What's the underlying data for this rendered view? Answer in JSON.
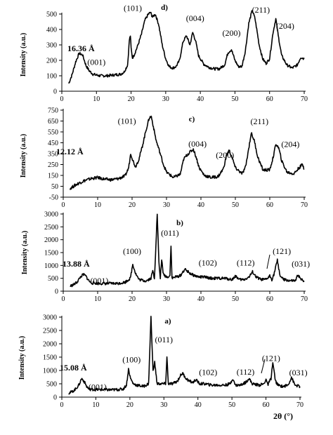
{
  "chart_data": [
    {
      "type": "line",
      "panel": "d)",
      "ylabel": "Intensity (a.u.)",
      "xlim": [
        0,
        70
      ],
      "ylim": [
        0,
        500
      ],
      "xticks": [
        0,
        10,
        20,
        30,
        40,
        50,
        60,
        70
      ],
      "yticks": [
        0,
        100,
        200,
        300,
        400,
        500
      ],
      "d_spacing": "16.36 Å",
      "annotations": [
        {
          "text": "(001)",
          "x": 10,
          "y": 170
        },
        {
          "text": "(101)",
          "x": 20.5,
          "y": 520
        },
        {
          "text": "(004)",
          "x": 38.5,
          "y": 455
        },
        {
          "text": "(200)",
          "x": 49,
          "y": 360
        },
        {
          "text": "(211)",
          "x": 57.5,
          "y": 510
        },
        {
          "text": "(204)",
          "x": 64.5,
          "y": 405
        }
      ],
      "series": [
        {
          "x": [
            2,
            3,
            4,
            5,
            6,
            7,
            8,
            9,
            11,
            13,
            15,
            17,
            18,
            19,
            19.5,
            19.8,
            20,
            20.4,
            21,
            22,
            23,
            24,
            25,
            25.6,
            26.2,
            27,
            28,
            29,
            30,
            31,
            32,
            33,
            34,
            35,
            36,
            37,
            37.8,
            38.6,
            39.5,
            41,
            42.5,
            44,
            45.5,
            47,
            48,
            49,
            50,
            51,
            52,
            53,
            54,
            55,
            55.8,
            57,
            58,
            59,
            60,
            61,
            61.8,
            62.5,
            63.5,
            65,
            66.5,
            68,
            69,
            70
          ],
          "y": [
            50,
            110,
            190,
            245,
            235,
            165,
            130,
            110,
            100,
            100,
            105,
            110,
            125,
            170,
            330,
            360,
            280,
            215,
            240,
            300,
            370,
            460,
            500,
            510,
            480,
            500,
            430,
            300,
            210,
            160,
            150,
            160,
            200,
            320,
            360,
            300,
            380,
            330,
            230,
            175,
            155,
            145,
            145,
            170,
            250,
            270,
            200,
            160,
            160,
            260,
            440,
            525,
            470,
            300,
            210,
            180,
            210,
            380,
            470,
            360,
            230,
            170,
            150,
            170,
            220,
            210
          ]
        }
      ]
    },
    {
      "type": "line",
      "panel": "c)",
      "ylabel": "Intensity (a.u.)",
      "xlim": [
        0,
        70
      ],
      "ylim": [
        -50,
        750
      ],
      "xticks": [
        0,
        10,
        20,
        30,
        40,
        50,
        60,
        70
      ],
      "yticks": [
        -50,
        50,
        150,
        250,
        350,
        450,
        550,
        650,
        750
      ],
      "yticklabels": [
        "-50",
        "50",
        "150",
        "250",
        "350",
        "450",
        "550",
        "650",
        "750"
      ],
      "d_spacing": "12.12 Å",
      "annotations": [
        {
          "text": "(101)",
          "x": 18.5,
          "y": 625
        },
        {
          "text": "(004)",
          "x": 39,
          "y": 415
        },
        {
          "text": "(200)",
          "x": 47,
          "y": 310
        },
        {
          "text": "(211)",
          "x": 57,
          "y": 620
        },
        {
          "text": "(204)",
          "x": 66,
          "y": 410
        }
      ],
      "series": [
        {
          "x": [
            2,
            4,
            6,
            8,
            10,
            12,
            14,
            16,
            18,
            19,
            19.6,
            20.2,
            21,
            22,
            23,
            24,
            25,
            25.6,
            26.3,
            27,
            28,
            29,
            30,
            32,
            34,
            35,
            36,
            37,
            37.8,
            38.6,
            39.5,
            41,
            43,
            45,
            46.5,
            47.5,
            48.2,
            49,
            50,
            52,
            53,
            54,
            54.6,
            55.5,
            56.5,
            58,
            60,
            61,
            61.8,
            62.6,
            63.5,
            65,
            67,
            68.5,
            69.5,
            70
          ],
          "y": [
            30,
            70,
            100,
            120,
            130,
            115,
            110,
            120,
            145,
            220,
            355,
            290,
            230,
            300,
            420,
            560,
            680,
            690,
            580,
            470,
            370,
            260,
            180,
            130,
            160,
            300,
            340,
            370,
            390,
            320,
            220,
            150,
            130,
            140,
            210,
            340,
            380,
            320,
            220,
            165,
            230,
            420,
            540,
            470,
            320,
            200,
            200,
            320,
            440,
            400,
            280,
            180,
            165,
            220,
            250,
            210
          ]
        }
      ]
    },
    {
      "type": "line",
      "panel": "b)",
      "ylabel": "Intensity (a.u.)",
      "xlim": [
        0,
        70
      ],
      "ylim": [
        0,
        3000
      ],
      "xticks": [
        0,
        10,
        20,
        30,
        40,
        50,
        60,
        70
      ],
      "yticks": [
        0,
        500,
        1000,
        1500,
        2000,
        2500,
        3000
      ],
      "d_spacing": "13.88 Å",
      "annotations": [
        {
          "text": "(001)",
          "x": 10.5,
          "y": 300
        },
        {
          "text": "(100)",
          "x": 20,
          "y": 1450
        },
        {
          "text": "(011)",
          "x": 31,
          "y": 2150
        },
        {
          "text": "(102)",
          "x": 42,
          "y": 1000
        },
        {
          "text": "(112)",
          "x": 53,
          "y": 1000
        },
        {
          "text": "(121)",
          "x": 63.5,
          "y": 1450
        },
        {
          "text": "(031)",
          "x": 69,
          "y": 960
        }
      ],
      "series": [
        {
          "x": [
            2,
            3,
            4,
            5,
            5.8,
            6.5,
            7.2,
            8,
            10,
            12,
            14,
            16,
            18,
            19.5,
            20.2,
            21,
            22,
            24,
            25.5,
            26,
            26.5,
            27.3,
            27.8,
            28.2,
            28.6,
            29,
            29.5,
            30.2,
            31,
            31.3,
            31.6,
            32.5,
            34,
            35.3,
            36.3,
            37.3,
            38.3,
            39.5,
            41,
            43,
            45,
            47,
            49,
            50.2,
            51,
            52.5,
            54,
            55,
            56,
            57.5,
            59,
            60,
            60.6,
            61.2,
            62.2,
            63,
            64,
            66,
            67.5,
            68.2,
            69,
            70
          ],
          "y": [
            200,
            250,
            350,
            550,
            650,
            600,
            450,
            330,
            300,
            300,
            300,
            300,
            350,
            500,
            1050,
            700,
            450,
            400,
            500,
            800,
            500,
            3000,
            1100,
            500,
            1250,
            700,
            600,
            550,
            600,
            1800,
            500,
            550,
            600,
            850,
            750,
            650,
            600,
            550,
            550,
            500,
            500,
            500,
            450,
            600,
            450,
            450,
            550,
            750,
            550,
            450,
            450,
            600,
            450,
            650,
            1200,
            600,
            450,
            400,
            400,
            650,
            450,
            400
          ]
        }
      ]
    },
    {
      "type": "line",
      "panel": "a)",
      "ylabel": "Intensity (a.u.)",
      "xlabel": "2θ (°)",
      "xlim": [
        0,
        70
      ],
      "ylim": [
        0,
        3000
      ],
      "xticks": [
        0,
        10,
        20,
        30,
        40,
        50,
        60,
        70
      ],
      "yticks": [
        0,
        500,
        1000,
        1500,
        2000,
        2500,
        3000
      ],
      "d_spacing": "15.08 Å",
      "annotations": [
        {
          "text": "(001)",
          "x": 10.5,
          "y": 280
        },
        {
          "text": "(100)",
          "x": 20.5,
          "y": 1300
        },
        {
          "text": "(011)",
          "x": 30,
          "y": 2050
        },
        {
          "text": "(102)",
          "x": 43,
          "y": 830
        },
        {
          "text": "(112)",
          "x": 54,
          "y": 840
        },
        {
          "text": "(121)",
          "x": 61.5,
          "y": 1360
        },
        {
          "text": "(031)",
          "x": 69.5,
          "y": 810
        }
      ],
      "series": [
        {
          "x": [
            2,
            3,
            4,
            5,
            5.8,
            6.5,
            7.3,
            8,
            10,
            12,
            14,
            16,
            18,
            19,
            19.6,
            20.2,
            21,
            22,
            24,
            25.5,
            26.2,
            26.8,
            27.3,
            28,
            29,
            30.5,
            30.9,
            31.3,
            32.5,
            34,
            34.8,
            35.5,
            36.5,
            37.5,
            38.5,
            39.4,
            40.5,
            42,
            44,
            46,
            48,
            49.5,
            50.2,
            51,
            52.5,
            54,
            55,
            56,
            58,
            59.5,
            60,
            60.5,
            61.5,
            62,
            62.8,
            63.5,
            65,
            66.5,
            67.5,
            68.5,
            70
          ],
          "y": [
            150,
            200,
            300,
            450,
            700,
            600,
            400,
            300,
            280,
            280,
            270,
            280,
            300,
            450,
            1050,
            700,
            500,
            450,
            400,
            500,
            3000,
            1000,
            1300,
            500,
            500,
            500,
            1500,
            500,
            500,
            600,
            800,
            900,
            700,
            600,
            550,
            650,
            500,
            500,
            450,
            450,
            450,
            500,
            700,
            450,
            450,
            550,
            700,
            500,
            450,
            500,
            700,
            450,
            700,
            1300,
            600,
            450,
            400,
            450,
            750,
            450,
            400
          ]
        }
      ]
    }
  ]
}
